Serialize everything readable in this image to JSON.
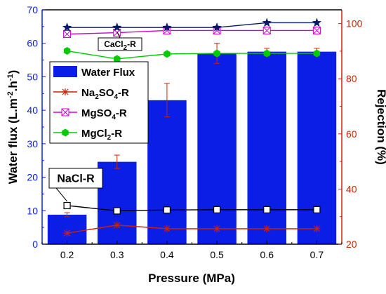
{
  "chart_data": {
    "type": "bar",
    "xlabel": "Pressure (MPa)",
    "ylabel_left": "Water flux (L.m-2.h-1)",
    "ylabel_right": "Rejection (%)",
    "x": [
      0.2,
      0.3,
      0.4,
      0.5,
      0.6,
      0.7
    ],
    "x_ticks": [
      "0.2",
      "0.3",
      "0.4",
      "0.5",
      "0.6",
      "0.7"
    ],
    "ylim_left": [
      0,
      70
    ],
    "ylim_right": [
      20,
      105
    ],
    "y_ticks_left": [
      "0",
      "10",
      "20",
      "30",
      "40",
      "50",
      "60",
      "70"
    ],
    "y_ticks_right": [
      "20",
      "40",
      "60",
      "80",
      "100"
    ],
    "bar_series": {
      "name": "Water Flux",
      "values": [
        8.8,
        24.6,
        43.0,
        57.0,
        57.5,
        57.5
      ],
      "errors": [
        0.6,
        2.0,
        5.0,
        3.0,
        1.0,
        1.0
      ],
      "color": "#0a1ee6"
    },
    "line_series": [
      {
        "name": "Na2SO4-R",
        "values": [
          24.0,
          26.9,
          25.6,
          25.6,
          25.6,
          25.6
        ],
        "color": "#cc2200",
        "marker": "asterisk",
        "axis": "right"
      },
      {
        "name": "MgSO4-R",
        "values": [
          96.2,
          96.7,
          97.5,
          97.5,
          97.5,
          97.5
        ],
        "color": "#d100d1",
        "marker": "box-x",
        "axis": "right"
      },
      {
        "name": "MgCl2-R",
        "values": [
          90.1,
          87.2,
          89.0,
          89.2,
          89.2,
          89.2
        ],
        "color": "#00cc00",
        "marker": "hexagon",
        "axis": "right"
      },
      {
        "name": "CaCl2-R",
        "values": [
          98.6,
          98.6,
          98.6,
          98.6,
          100.3,
          100.3
        ],
        "color": "#0a1a6b",
        "marker": "star",
        "axis": "right"
      },
      {
        "name": "NaCl-R",
        "values": [
          34.0,
          32.1,
          32.4,
          32.5,
          32.5,
          32.5
        ],
        "color": "#000000",
        "marker": "open-square",
        "axis": "right"
      }
    ],
    "legend": [
      "Water Flux",
      "Na2SO4-R",
      "MgSO4-R",
      "MgCl2-R"
    ],
    "callouts": [
      {
        "label": "CaCl2-R",
        "series": "CaCl2-R"
      },
      {
        "label": "NaCl-R",
        "series": "NaCl-R"
      }
    ],
    "legend_position": "top-left",
    "grid": false,
    "colors": {
      "left_axis": "#0a1ee6",
      "right_axis": "#cc2200",
      "axis_text": "#000000"
    }
  }
}
